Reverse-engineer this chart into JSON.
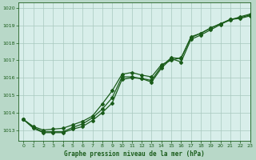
{
  "title": "Graphe pression niveau de la mer (hPa)",
  "background_color": "#b8d8c8",
  "plot_bg_color": "#d8eeea",
  "grid_color": "#a8c8be",
  "line_color": "#1a5c1a",
  "xlim": [
    -0.5,
    23
  ],
  "ylim": [
    1012.4,
    1020.3
  ],
  "yticks": [
    1013,
    1014,
    1015,
    1016,
    1017,
    1018,
    1019,
    1020
  ],
  "xticks": [
    0,
    1,
    2,
    3,
    4,
    5,
    6,
    7,
    8,
    9,
    10,
    11,
    12,
    13,
    14,
    15,
    16,
    17,
    18,
    19,
    20,
    21,
    22,
    23
  ],
  "series": [
    [
      1013.6,
      1013.1,
      1012.85,
      1012.85,
      1012.85,
      1013.05,
      1013.2,
      1013.55,
      1014.0,
      1014.55,
      1015.9,
      1016.0,
      1015.95,
      1015.75,
      1016.55,
      1017.1,
      1016.9,
      1018.2,
      1018.45,
      1018.75,
      1019.05,
      1019.35,
      1019.4,
      1019.55
    ],
    [
      1013.6,
      1013.15,
      1012.9,
      1012.9,
      1012.9,
      1013.15,
      1013.35,
      1013.7,
      1014.2,
      1014.85,
      1016.05,
      1016.05,
      1015.95,
      1015.85,
      1016.65,
      1017.15,
      1017.1,
      1018.35,
      1018.55,
      1018.85,
      1019.1,
      1019.35,
      1019.45,
      1019.6
    ],
    [
      1013.6,
      1013.2,
      1013.0,
      1013.05,
      1013.1,
      1013.3,
      1013.5,
      1013.8,
      1014.35,
      1015.1,
      1016.05,
      1016.15,
      1016.0,
      1015.9,
      1016.6,
      1017.0,
      1017.15,
      1018.3,
      1018.55,
      1018.85,
      1019.1,
      1019.3,
      1019.5,
      1019.65
    ]
  ],
  "marker": "D",
  "markersize": 2.0,
  "linewidth": 0.9
}
